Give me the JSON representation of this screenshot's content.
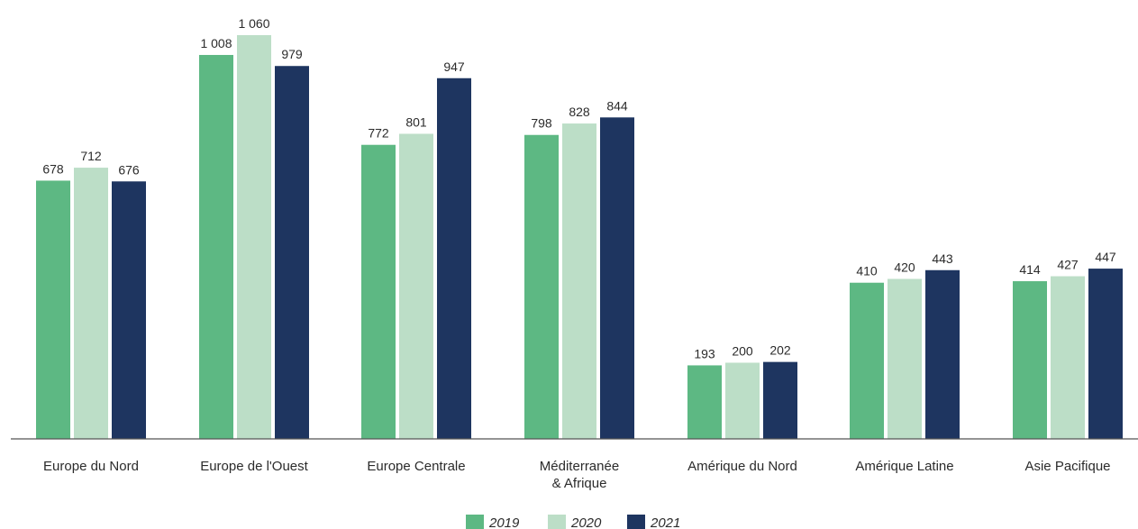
{
  "chart_data": {
    "type": "bar",
    "categories": [
      [
        "Europe du Nord"
      ],
      [
        "Europe de l'Ouest"
      ],
      [
        "Europe Centrale"
      ],
      [
        "Méditerranée",
        "& Afrique"
      ],
      [
        "Amérique du Nord"
      ],
      [
        "Amérique Latine"
      ],
      [
        "Asie Pacifique"
      ]
    ],
    "series": [
      {
        "name": "2019",
        "color": "#5db883",
        "values": [
          678,
          1008,
          772,
          798,
          193,
          410,
          414
        ],
        "labels": [
          "678",
          "1 008",
          "772",
          "798",
          "193",
          "410",
          "414"
        ]
      },
      {
        "name": "2020",
        "color": "#bcdec7",
        "values": [
          712,
          1060,
          801,
          828,
          200,
          420,
          427
        ],
        "labels": [
          "712",
          "1 060",
          "801",
          "828",
          "200",
          "420",
          "427"
        ]
      },
      {
        "name": "2021",
        "color": "#1e3560",
        "values": [
          676,
          979,
          947,
          844,
          202,
          443,
          447
        ],
        "labels": [
          "676",
          "979",
          "947",
          "844",
          "202",
          "443",
          "447"
        ]
      }
    ],
    "title": "",
    "xlabel": "",
    "ylabel": "",
    "ylim": [
      0,
      1060
    ],
    "grid": false,
    "legend_position": "bottom-center",
    "baseline_color": "#555555"
  }
}
